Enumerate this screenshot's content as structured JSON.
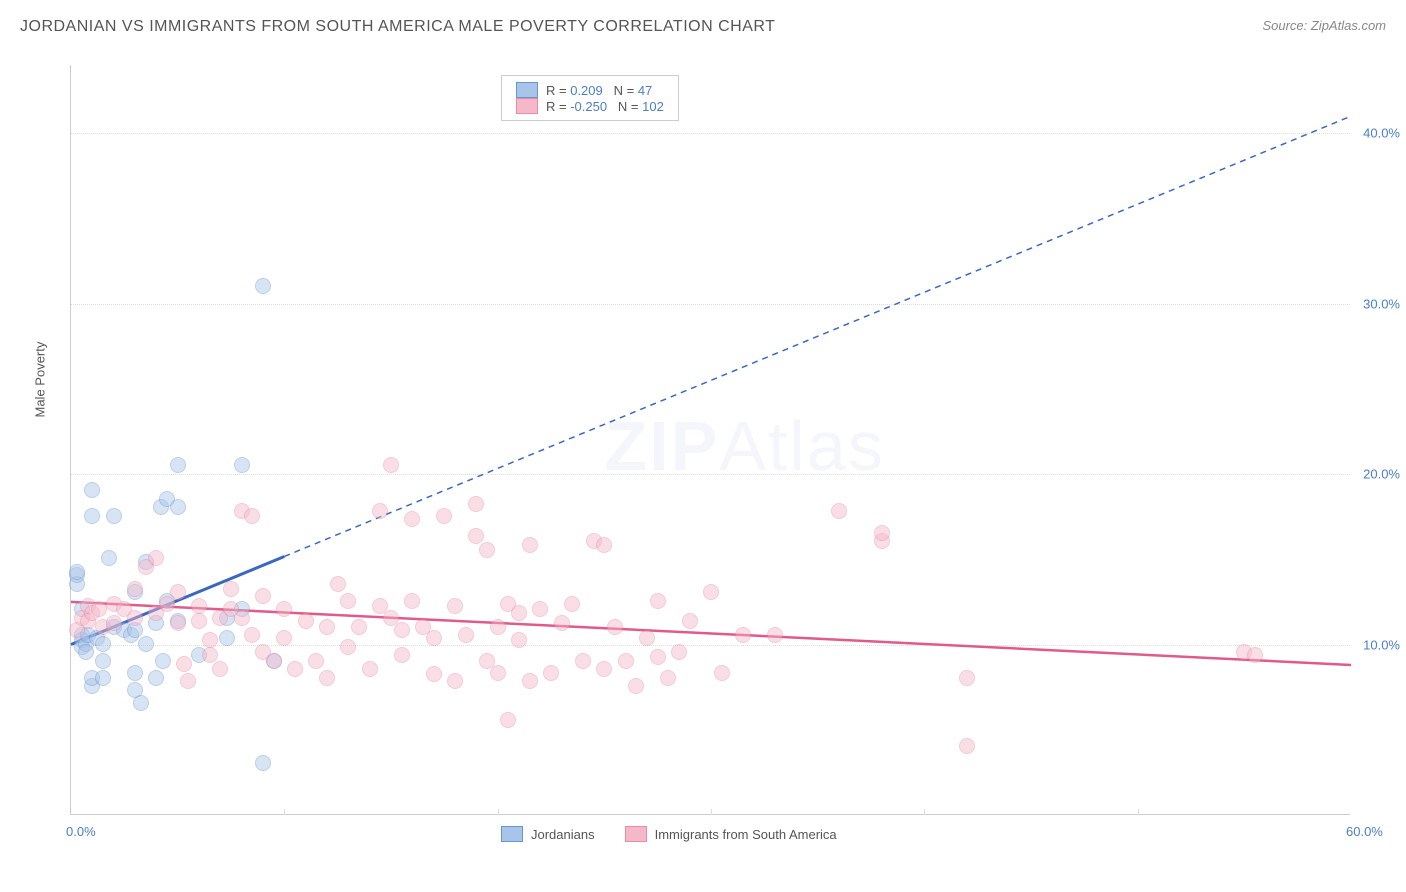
{
  "title": "JORDANIAN VS IMMIGRANTS FROM SOUTH AMERICA MALE POVERTY CORRELATION CHART",
  "source": "Source: ZipAtlas.com",
  "y_axis_label": "Male Poverty",
  "watermark": {
    "text1": "ZIP",
    "text2": "Atlas",
    "color": "#b8c8e8"
  },
  "chart": {
    "type": "scatter",
    "xlim": [
      0,
      60
    ],
    "ylim": [
      0,
      44
    ],
    "x_ticks": [
      {
        "v": 0,
        "l": "0.0%"
      },
      {
        "v": 60,
        "l": "60.0%"
      }
    ],
    "x_minor_ticks": [
      10,
      20,
      30,
      40,
      50
    ],
    "y_ticks": [
      {
        "v": 10,
        "l": "10.0%"
      },
      {
        "v": 20,
        "l": "20.0%"
      },
      {
        "v": 30,
        "l": "30.0%"
      },
      {
        "v": 40,
        "l": "40.0%"
      }
    ],
    "y_tick_color": "#4a7ec9",
    "x_tick_color": "#4a7ec9",
    "grid_color": "#dddddd",
    "background_color": "#ffffff",
    "marker_size": 16,
    "marker_opacity": 0.45,
    "legend_top": {
      "rows": [
        {
          "swatch_fill": "#a8c4e8",
          "swatch_border": "#6a95d0",
          "r_label": "R = ",
          "r_val": "0.209",
          "n_label": "   N = ",
          "n_val": "47",
          "val_color": "#4a7ec9"
        },
        {
          "swatch_fill": "#f4b8c8",
          "swatch_border": "#e88aa8",
          "r_label": "R = ",
          "r_val": "-0.250",
          "n_label": "   N = ",
          "n_val": "102",
          "val_color": "#4a7ec9"
        }
      ]
    },
    "legend_bottom": [
      {
        "swatch_fill": "#a8c4e8",
        "swatch_border": "#6a95d0",
        "label": "Jordanians"
      },
      {
        "swatch_fill": "#f4b8c8",
        "swatch_border": "#e88aa8",
        "label": "Immigrants from South America"
      }
    ],
    "series": [
      {
        "name": "Jordanians",
        "fill": "#a8c4e8",
        "border": "#6a95d0",
        "trend": {
          "x1": 0,
          "y1": 10,
          "x2": 60,
          "y2": 41,
          "dash_after_x": 10,
          "color": "#3a68c0",
          "width": 2,
          "dash": "6,5"
        },
        "points": [
          [
            0.3,
            13.5
          ],
          [
            0.3,
            14
          ],
          [
            0.3,
            14.2
          ],
          [
            0.5,
            10.5
          ],
          [
            0.5,
            10.2
          ],
          [
            0.5,
            9.8
          ],
          [
            0.5,
            12
          ],
          [
            0.7,
            10
          ],
          [
            0.7,
            9.5
          ],
          [
            0.8,
            10.5
          ],
          [
            1,
            7.5
          ],
          [
            1,
            8
          ],
          [
            1,
            17.5
          ],
          [
            1,
            19
          ],
          [
            1.2,
            10.3
          ],
          [
            1.5,
            10
          ],
          [
            1.5,
            9
          ],
          [
            1.5,
            8
          ],
          [
            1.8,
            15
          ],
          [
            2,
            11
          ],
          [
            2,
            17.5
          ],
          [
            2.5,
            10.8
          ],
          [
            2.8,
            10.5
          ],
          [
            3,
            7.3
          ],
          [
            3,
            8.3
          ],
          [
            3,
            10.8
          ],
          [
            3,
            13
          ],
          [
            3.3,
            6.5
          ],
          [
            3.5,
            10
          ],
          [
            3.5,
            14.8
          ],
          [
            4,
            8
          ],
          [
            4,
            11.2
          ],
          [
            4.2,
            18
          ],
          [
            4.3,
            9
          ],
          [
            4.5,
            12.5
          ],
          [
            4.5,
            18.5
          ],
          [
            5,
            11.3
          ],
          [
            5,
            18
          ],
          [
            5,
            20.5
          ],
          [
            6,
            9.3
          ],
          [
            7.3,
            10.3
          ],
          [
            7.3,
            11.5
          ],
          [
            8,
            12
          ],
          [
            8,
            20.5
          ],
          [
            9,
            31
          ],
          [
            9,
            3
          ],
          [
            9.5,
            9
          ]
        ]
      },
      {
        "name": "Immigrants from South America",
        "fill": "#f4b8c8",
        "border": "#e88aa8",
        "trend": {
          "x1": 0,
          "y1": 12.5,
          "x2": 60,
          "y2": 8.8,
          "color": "#e05a8a",
          "width": 2.5
        },
        "points": [
          [
            0.3,
            10.8
          ],
          [
            0.5,
            11.5
          ],
          [
            0.8,
            11.3
          ],
          [
            0.8,
            12.2
          ],
          [
            1,
            11.8
          ],
          [
            1.3,
            12
          ],
          [
            1.5,
            11
          ],
          [
            2,
            11.2
          ],
          [
            2,
            12.3
          ],
          [
            2.5,
            12
          ],
          [
            3,
            11.5
          ],
          [
            3,
            13.2
          ],
          [
            3.5,
            14.5
          ],
          [
            4,
            11.8
          ],
          [
            4,
            15
          ],
          [
            4.5,
            12.3
          ],
          [
            5,
            11.2
          ],
          [
            5,
            13
          ],
          [
            5.3,
            8.8
          ],
          [
            5.5,
            7.8
          ],
          [
            6,
            11.3
          ],
          [
            6,
            12.2
          ],
          [
            6.5,
            9.3
          ],
          [
            6.5,
            10.2
          ],
          [
            7,
            11.5
          ],
          [
            7,
            8.5
          ],
          [
            7.5,
            12
          ],
          [
            7.5,
            13.2
          ],
          [
            8,
            11.5
          ],
          [
            8,
            17.8
          ],
          [
            8.5,
            10.5
          ],
          [
            8.5,
            17.5
          ],
          [
            9,
            9.5
          ],
          [
            9,
            12.8
          ],
          [
            9.5,
            9
          ],
          [
            10,
            12
          ],
          [
            10,
            10.3
          ],
          [
            10.5,
            8.5
          ],
          [
            11,
            11.3
          ],
          [
            11.5,
            9
          ],
          [
            12,
            8
          ],
          [
            12,
            11
          ],
          [
            12.5,
            13.5
          ],
          [
            13,
            9.8
          ],
          [
            13,
            12.5
          ],
          [
            13.5,
            11
          ],
          [
            14,
            8.5
          ],
          [
            14.5,
            17.8
          ],
          [
            14.5,
            12.2
          ],
          [
            15,
            11.5
          ],
          [
            15,
            20.5
          ],
          [
            15.5,
            9.3
          ],
          [
            15.5,
            10.8
          ],
          [
            16,
            17.3
          ],
          [
            16,
            12.5
          ],
          [
            16.5,
            11
          ],
          [
            17,
            10.3
          ],
          [
            17,
            8.2
          ],
          [
            17.5,
            17.5
          ],
          [
            18,
            12.2
          ],
          [
            18,
            7.8
          ],
          [
            18.5,
            10.5
          ],
          [
            19,
            16.3
          ],
          [
            19,
            18.2
          ],
          [
            19.5,
            9
          ],
          [
            19.5,
            15.5
          ],
          [
            20,
            11
          ],
          [
            20,
            8.3
          ],
          [
            20.5,
            12.3
          ],
          [
            20.5,
            5.5
          ],
          [
            21,
            11.8
          ],
          [
            21,
            10.2
          ],
          [
            21.5,
            15.8
          ],
          [
            21.5,
            7.8
          ],
          [
            22,
            12
          ],
          [
            22.5,
            8.3
          ],
          [
            23,
            11.2
          ],
          [
            23.5,
            12.3
          ],
          [
            24,
            9
          ],
          [
            24.5,
            16
          ],
          [
            25,
            15.8
          ],
          [
            25,
            8.5
          ],
          [
            25.5,
            11
          ],
          [
            26,
            9
          ],
          [
            26.5,
            7.5
          ],
          [
            27,
            10.3
          ],
          [
            27.5,
            9.2
          ],
          [
            27.5,
            12.5
          ],
          [
            28,
            8
          ],
          [
            28.5,
            9.5
          ],
          [
            29,
            11.3
          ],
          [
            30,
            13
          ],
          [
            30.5,
            8.3
          ],
          [
            31.5,
            10.5
          ],
          [
            33,
            10.5
          ],
          [
            36,
            17.8
          ],
          [
            38,
            16
          ],
          [
            38,
            16.5
          ],
          [
            42,
            8
          ],
          [
            42,
            4
          ],
          [
            55,
            9.5
          ],
          [
            55.5,
            9.3
          ]
        ]
      }
    ]
  }
}
